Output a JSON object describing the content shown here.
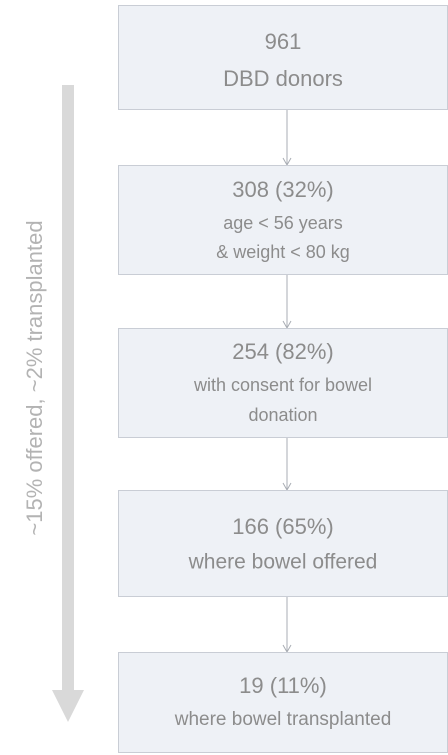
{
  "side_label": "~15% offered, ~2% transplanted",
  "nodes": [
    {
      "lines": [
        "961",
        "DBD donors"
      ]
    },
    {
      "lines": [
        "308 (32%)",
        "age < 56 years",
        "& weight < 80 kg"
      ]
    },
    {
      "lines": [
        "254 (82%)",
        "with consent for bowel",
        "donation"
      ]
    },
    {
      "lines": [
        "166 (65%)",
        "where bowel offered"
      ]
    },
    {
      "lines": [
        "19 (11%)",
        "where bowel transplanted"
      ]
    }
  ]
}
